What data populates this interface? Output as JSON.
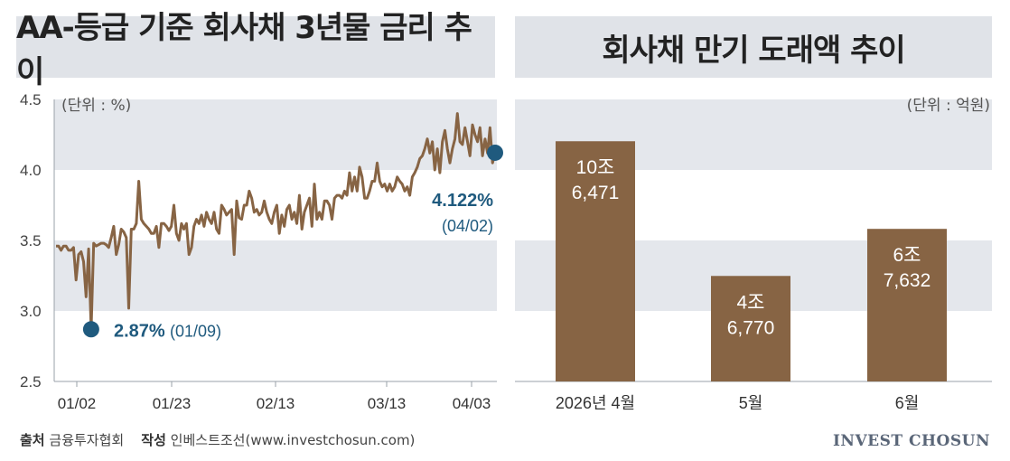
{
  "left_panel": {
    "title": "AA-등급 기준 회사채 3년물 금리 추이",
    "unit": "(단위 : %)"
  },
  "right_panel": {
    "title": "회사채 만기 도래액 추이",
    "unit": "(단위 : 억원)"
  },
  "footer": {
    "source_label": "출처",
    "source": "금융투자협회",
    "author_label": "작성",
    "author": "인베스트조선(www.investchosun.com)"
  },
  "brand": "INVEST CHOSUN",
  "colors": {
    "series": "#876444",
    "marker": "#1f5a7e",
    "band": "#e4e7ec",
    "bar": "#876444"
  },
  "chart_data": [
    {
      "type": "line",
      "title": "AA-등급 기준 회사채 3년물 금리 추이",
      "ylim": [
        2.5,
        4.5
      ],
      "yticks": [
        "4.5",
        "4.0",
        "3.5",
        "3.0",
        "2.5"
      ],
      "xticks": [
        "01/02",
        "01/23",
        "02/13",
        "03/13",
        "04/03"
      ],
      "series": [
        {
          "values": [
            3.46,
            3.46,
            3.43,
            3.46,
            3.46,
            3.43,
            3.43,
            3.45,
            3.22,
            3.4,
            3.42,
            3.35,
            3.1,
            3.44,
            2.87,
            3.48,
            3.46,
            3.47,
            3.48,
            3.48,
            3.47,
            3.45,
            3.52,
            3.6,
            3.4,
            3.47,
            3.58,
            3.56,
            3.52,
            3.02,
            3.58,
            3.58,
            3.62,
            3.92,
            3.65,
            3.62,
            3.6,
            3.58,
            3.55,
            3.55,
            3.6,
            3.45,
            3.62,
            3.62,
            3.6,
            3.57,
            3.6,
            3.75,
            3.55,
            3.5,
            3.62,
            3.58,
            3.62,
            3.4,
            3.45,
            3.6,
            3.65,
            3.62,
            3.68,
            3.6,
            3.7,
            3.65,
            3.62,
            3.7,
            3.58,
            3.55,
            3.75,
            3.72,
            3.68,
            3.7,
            3.72,
            3.4,
            3.78,
            3.66,
            3.65,
            3.75,
            3.75,
            3.85,
            3.8,
            3.7,
            3.72,
            3.68,
            3.7,
            3.78,
            3.7,
            3.65,
            3.62,
            3.7,
            3.75,
            3.55,
            3.68,
            3.6,
            3.72,
            3.75,
            3.65,
            3.7,
            3.62,
            3.82,
            3.58,
            3.7,
            3.75,
            3.8,
            3.6,
            3.9,
            3.65,
            3.7,
            3.65,
            3.78,
            3.78,
            3.75,
            3.65,
            3.8,
            3.82,
            3.82,
            3.8,
            3.85,
            3.82,
            3.98,
            3.85,
            3.95,
            3.85,
            4.02,
            3.95,
            3.8,
            3.8,
            3.85,
            3.92,
            3.92,
            4.05,
            3.92,
            3.88,
            3.9,
            3.85,
            3.9,
            3.85,
            3.88,
            3.95,
            3.92,
            3.9,
            3.85,
            3.88,
            3.82,
            3.95,
            3.98,
            4.02,
            4.08,
            4.1,
            4.15,
            4.22,
            4.12,
            4.2,
            4.0,
            4.15,
            3.98,
            4.2,
            4.28,
            4.15,
            4.05,
            4.15,
            4.22,
            4.4,
            4.2,
            4.18,
            4.3,
            4.2,
            4.1,
            4.32,
            4.25,
            4.2,
            4.3,
            4.1,
            4.22,
            4.12,
            4.3,
            4.05,
            4.122
          ]
        }
      ],
      "annotations": [
        {
          "value_label": "2.87%",
          "date_label": "(01/09)",
          "value": 2.87
        },
        {
          "value_label": "4.122%",
          "date_label": "(04/02)",
          "value": 4.122
        }
      ]
    },
    {
      "type": "bar",
      "title": "회사채 만기 도래액 추이",
      "categories": [
        "2026년 4월",
        "5월",
        "6월"
      ],
      "values": [
        106471,
        46770,
        67632
      ],
      "data_labels": [
        [
          "10조",
          "6,471"
        ],
        [
          "4조",
          "6,770"
        ],
        [
          "6조",
          "7,632"
        ]
      ],
      "ylim": [
        0,
        125000
      ]
    }
  ]
}
